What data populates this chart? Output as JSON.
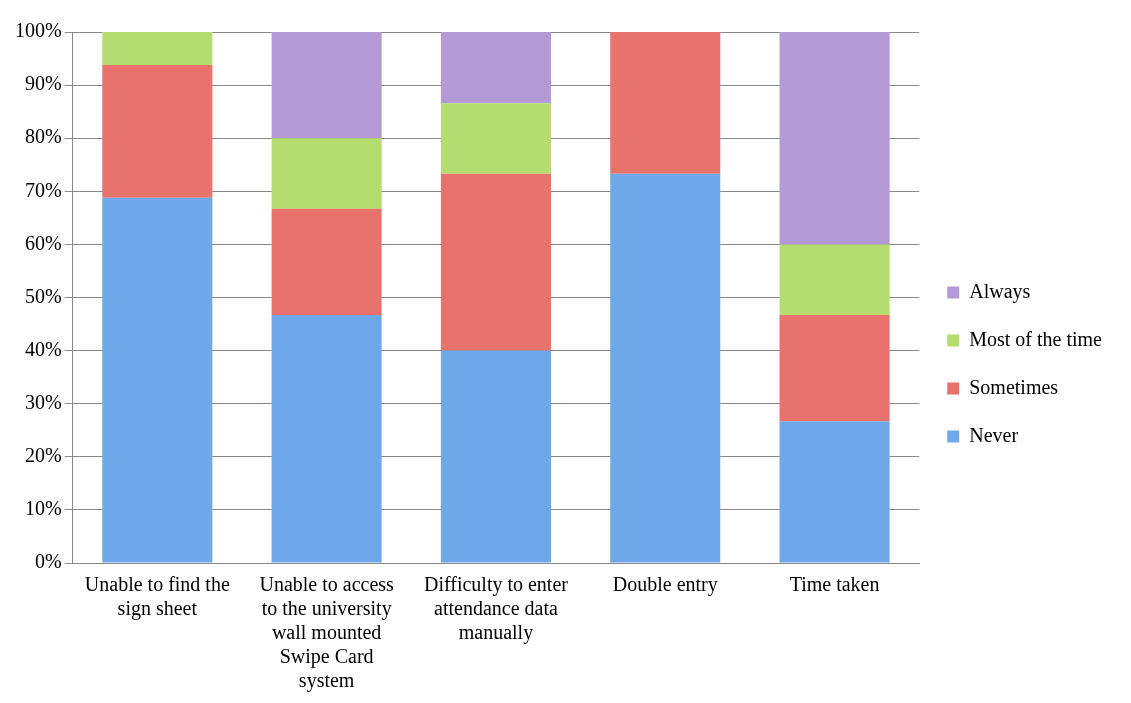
{
  "chart_data": {
    "type": "bar",
    "stacked": true,
    "categories": [
      "Unable to find the sign sheet",
      "Unable to access to the university wall mounted Swipe Card system",
      "Difficulty to enter attendance data manually",
      "Double entry",
      "Time taken"
    ],
    "series": [
      {
        "name": "Never",
        "color": "#6fa8e8",
        "values": [
          68.8,
          46.7,
          40,
          73.3,
          26.7
        ]
      },
      {
        "name": "Sometimes",
        "color": "#e8736c",
        "values": [
          25,
          20,
          33.3,
          26.7,
          20
        ]
      },
      {
        "name": "Most of the time",
        "color": "#b5dc6f",
        "values": [
          6.2,
          13.3,
          13.3,
          0,
          13.3
        ]
      },
      {
        "name": "Always",
        "color": "#b399d6",
        "values": [
          0,
          20,
          13.4,
          0,
          40
        ]
      }
    ],
    "ylim": [
      0,
      100
    ],
    "yticks": [
      {
        "value": 0,
        "label": "0%"
      },
      {
        "value": 10,
        "label": "10%"
      },
      {
        "value": 20,
        "label": "20%"
      },
      {
        "value": 30,
        "label": "30%"
      },
      {
        "value": 40,
        "label": "40%"
      },
      {
        "value": 50,
        "label": "50%"
      },
      {
        "value": 60,
        "label": "60%"
      },
      {
        "value": 70,
        "label": "70%"
      },
      {
        "value": 80,
        "label": "80%"
      },
      {
        "value": 90,
        "label": "90%"
      },
      {
        "value": 100,
        "label": "100%"
      }
    ],
    "grid": "y",
    "legend": "right"
  }
}
